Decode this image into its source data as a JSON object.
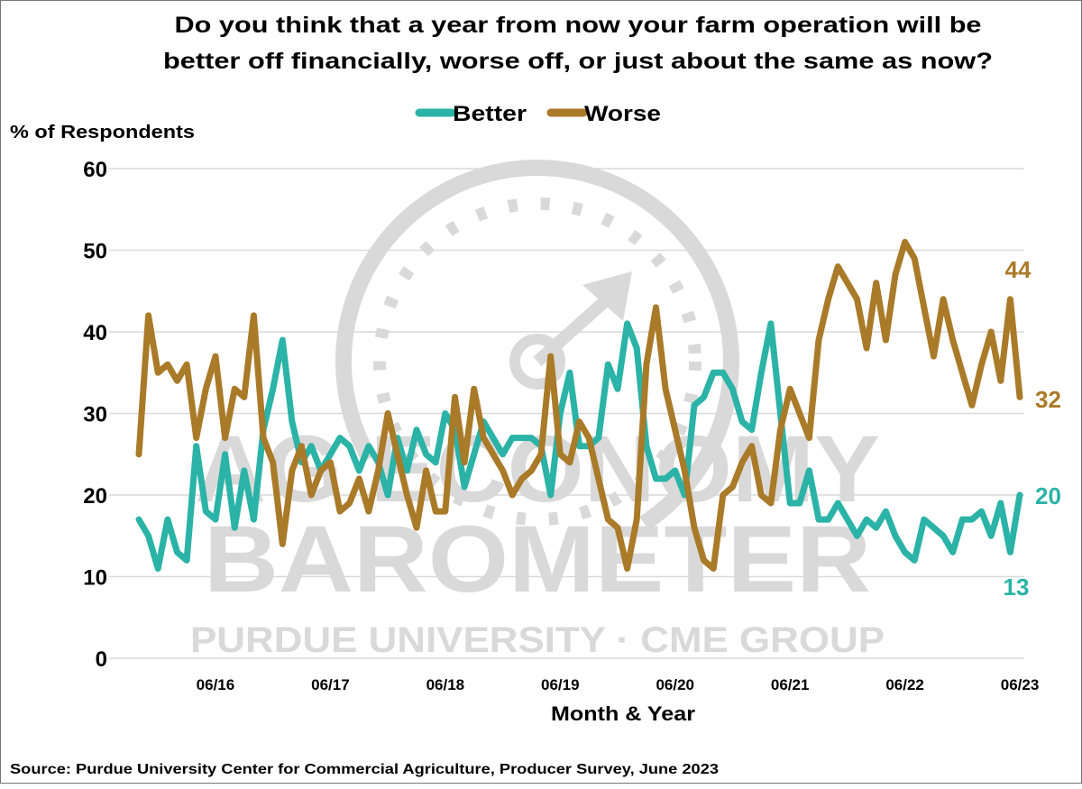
{
  "chart_data": {
    "type": "line",
    "title": [
      "Do you think that a year from now your farm operation will be",
      "better off financially, worse off, or just about the same as now?"
    ],
    "ylabel": "% of Respondents",
    "xlabel": "Month & Year",
    "ylim": [
      0,
      60
    ],
    "yticks": [
      0,
      10,
      20,
      30,
      40,
      50,
      60
    ],
    "xticks": [
      "06/16",
      "06/17",
      "06/18",
      "06/19",
      "06/20",
      "06/21",
      "06/22",
      "06/23"
    ],
    "grid": "horizontal",
    "legend_placement": "top-center",
    "x": [
      "10/15",
      "11/15",
      "12/15",
      "01/16",
      "02/16",
      "03/16",
      "04/16",
      "05/16",
      "06/16",
      "07/16",
      "08/16",
      "09/16",
      "10/16",
      "11/16",
      "12/16",
      "01/17",
      "02/17",
      "03/17",
      "04/17",
      "05/17",
      "06/17",
      "07/17",
      "08/17",
      "09/17",
      "10/17",
      "11/17",
      "12/17",
      "01/18",
      "02/18",
      "03/18",
      "04/18",
      "05/18",
      "06/18",
      "07/18",
      "08/18",
      "09/18",
      "10/18",
      "11/18",
      "12/18",
      "01/19",
      "02/19",
      "03/19",
      "04/19",
      "05/19",
      "06/19",
      "07/19",
      "08/19",
      "09/19",
      "10/19",
      "11/19",
      "12/19",
      "01/20",
      "02/20",
      "03/20",
      "04/20",
      "05/20",
      "06/20",
      "07/20",
      "08/20",
      "09/20",
      "10/20",
      "11/20",
      "12/20",
      "01/21",
      "02/21",
      "03/21",
      "04/21",
      "05/21",
      "06/21",
      "07/21",
      "08/21",
      "09/21",
      "10/21",
      "11/21",
      "12/21",
      "01/22",
      "02/22",
      "03/22",
      "04/22",
      "05/22",
      "06/22",
      "07/22",
      "08/22",
      "09/22",
      "10/22",
      "11/22",
      "12/22",
      "01/23",
      "02/23",
      "03/23",
      "04/23",
      "05/23",
      "06/23"
    ],
    "series": [
      {
        "name": "Better",
        "color": "#2ab3a6",
        "values": [
          17,
          15,
          11,
          17,
          13,
          12,
          26,
          18,
          17,
          25,
          16,
          23,
          17,
          28,
          33,
          39,
          29,
          24,
          26,
          23,
          25,
          27,
          26,
          23,
          26,
          24,
          20,
          27,
          23,
          28,
          25,
          24,
          30,
          28,
          21,
          25,
          29,
          27,
          25,
          27,
          27,
          27,
          26,
          20,
          30,
          35,
          26,
          26,
          27,
          36,
          33,
          41,
          38,
          26,
          22,
          22,
          23,
          20,
          31,
          32,
          35,
          35,
          33,
          29,
          28,
          35,
          41,
          30,
          19,
          19,
          23,
          17,
          17,
          19,
          17,
          15,
          17,
          16,
          18,
          15,
          13,
          12,
          17,
          16,
          15,
          13,
          17,
          17,
          18,
          15,
          19,
          13,
          20
        ]
      },
      {
        "name": "Worse",
        "color": "#a97a28",
        "values": [
          25,
          42,
          35,
          36,
          34,
          36,
          27,
          33,
          37,
          27,
          33,
          32,
          42,
          27,
          24,
          14,
          23,
          26,
          20,
          23,
          24,
          18,
          19,
          22,
          18,
          23,
          30,
          25,
          20,
          16,
          23,
          18,
          18,
          32,
          24,
          33,
          27,
          25,
          23,
          20,
          22,
          23,
          25,
          37,
          25,
          24,
          29,
          27,
          22,
          17,
          16,
          11,
          17,
          36,
          43,
          33,
          28,
          23,
          16,
          12,
          11,
          20,
          21,
          24,
          26,
          20,
          19,
          28,
          33,
          30,
          27,
          39,
          44,
          48,
          46,
          44,
          38,
          46,
          39,
          47,
          51,
          49,
          43,
          37,
          44,
          39,
          35,
          31,
          36,
          40,
          34,
          44,
          32
        ]
      }
    ],
    "annotations": [
      {
        "series": "Worse",
        "text": "44"
      },
      {
        "series": "Worse",
        "text": "32"
      },
      {
        "series": "Better",
        "text": "20"
      },
      {
        "series": "Better",
        "text": "13"
      }
    ],
    "source": "Source: Purdue University Center for Commercial Agriculture, Producer Survey, June 2023",
    "watermark": [
      "AG ECONOMY",
      "BAROMETER",
      "PURDUE UNIVERSITY · CME GROUP"
    ]
  }
}
